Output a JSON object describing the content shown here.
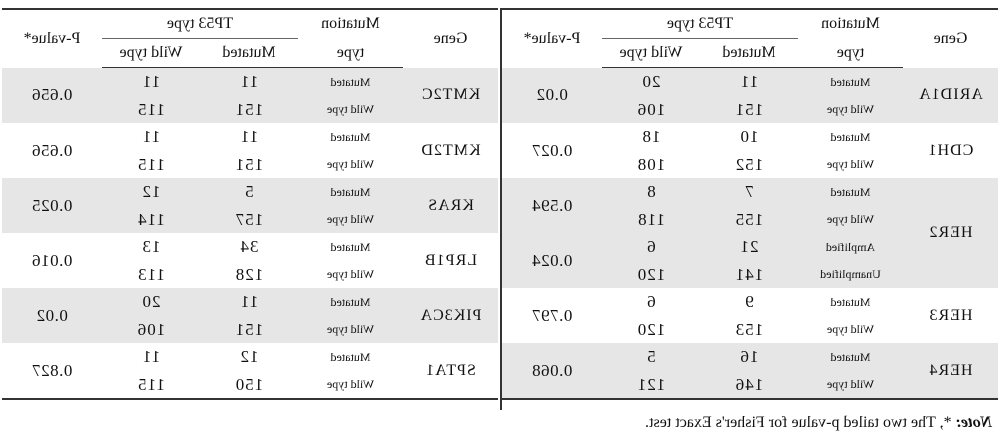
{
  "headers": {
    "gene": "Gene",
    "mutation_type_line1": "Mutation",
    "mutation_type_line2": "type",
    "tp53_type": "TP53 type",
    "mutated": "Mutated",
    "wild_type": "Wild type",
    "pvalue": "P-value*"
  },
  "left_table": [
    {
      "gene": "ARID1A",
      "pvalue": "0.02",
      "rows": [
        {
          "type": "Mutated",
          "mutated": "11",
          "wild": "20"
        },
        {
          "type": "Wild type",
          "mutated": "151",
          "wild": "106"
        }
      ]
    },
    {
      "gene": "CDH1",
      "pvalue": "0.027",
      "rows": [
        {
          "type": "Mutated",
          "mutated": "10",
          "wild": "18"
        },
        {
          "type": "Wild type",
          "mutated": "152",
          "wild": "108"
        }
      ]
    },
    {
      "gene": "HER2",
      "rows": [
        {
          "type": "Mutated",
          "mutated": "7",
          "wild": "8"
        },
        {
          "type": "Wild type",
          "mutated": "155",
          "wild": "118"
        },
        {
          "type": "Amplified",
          "mutated": "21",
          "wild": "6"
        },
        {
          "type": "Unamplified",
          "mutated": "141",
          "wild": "120"
        }
      ],
      "pvalues": [
        "0.594",
        "0.024"
      ]
    },
    {
      "gene": "HER3",
      "pvalue": "0.797",
      "rows": [
        {
          "type": "Mutated",
          "mutated": "9",
          "wild": "6"
        },
        {
          "type": "Wild type",
          "mutated": "153",
          "wild": "120"
        }
      ]
    },
    {
      "gene": "HER4",
      "pvalue": "0.068",
      "rows": [
        {
          "type": "Mutated",
          "mutated": "16",
          "wild": "5"
        },
        {
          "type": "Wild type",
          "mutated": "146",
          "wild": "121"
        }
      ]
    }
  ],
  "right_table": [
    {
      "gene": "KMT2C",
      "pvalue": "0.656",
      "rows": [
        {
          "type": "Mutated",
          "mutated": "11",
          "wild": "11"
        },
        {
          "type": "Wild type",
          "mutated": "151",
          "wild": "115"
        }
      ]
    },
    {
      "gene": "KMT2D",
      "pvalue": "0.656",
      "rows": [
        {
          "type": "Mutated",
          "mutated": "11",
          "wild": "11"
        },
        {
          "type": "Wild type",
          "mutated": "151",
          "wild": "115"
        }
      ]
    },
    {
      "gene": "KRAS",
      "pvalue": "0.025",
      "rows": [
        {
          "type": "Mutated",
          "mutated": "5",
          "wild": "12"
        },
        {
          "type": "Wild type",
          "mutated": "157",
          "wild": "114"
        }
      ]
    },
    {
      "gene": "LRP1B",
      "pvalue": "0.016",
      "rows": [
        {
          "type": "Mutated",
          "mutated": "34",
          "wild": "13"
        },
        {
          "type": "Wild type",
          "mutated": "128",
          "wild": "113"
        }
      ]
    },
    {
      "gene": "PIK3CA",
      "pvalue": "0.02",
      "rows": [
        {
          "type": "Mutated",
          "mutated": "11",
          "wild": "20"
        },
        {
          "type": "Wild type",
          "mutated": "151",
          "wild": "106"
        }
      ]
    },
    {
      "gene": "SPTA1",
      "pvalue": "0.827",
      "rows": [
        {
          "type": "Mutated",
          "mutated": "12",
          "wild": "11"
        },
        {
          "type": "Wild type",
          "mutated": "150",
          "wild": "115"
        }
      ]
    }
  ],
  "note": {
    "label": "Note:",
    "text": " *, The two tailed p-value for Fisher's Exact test."
  }
}
